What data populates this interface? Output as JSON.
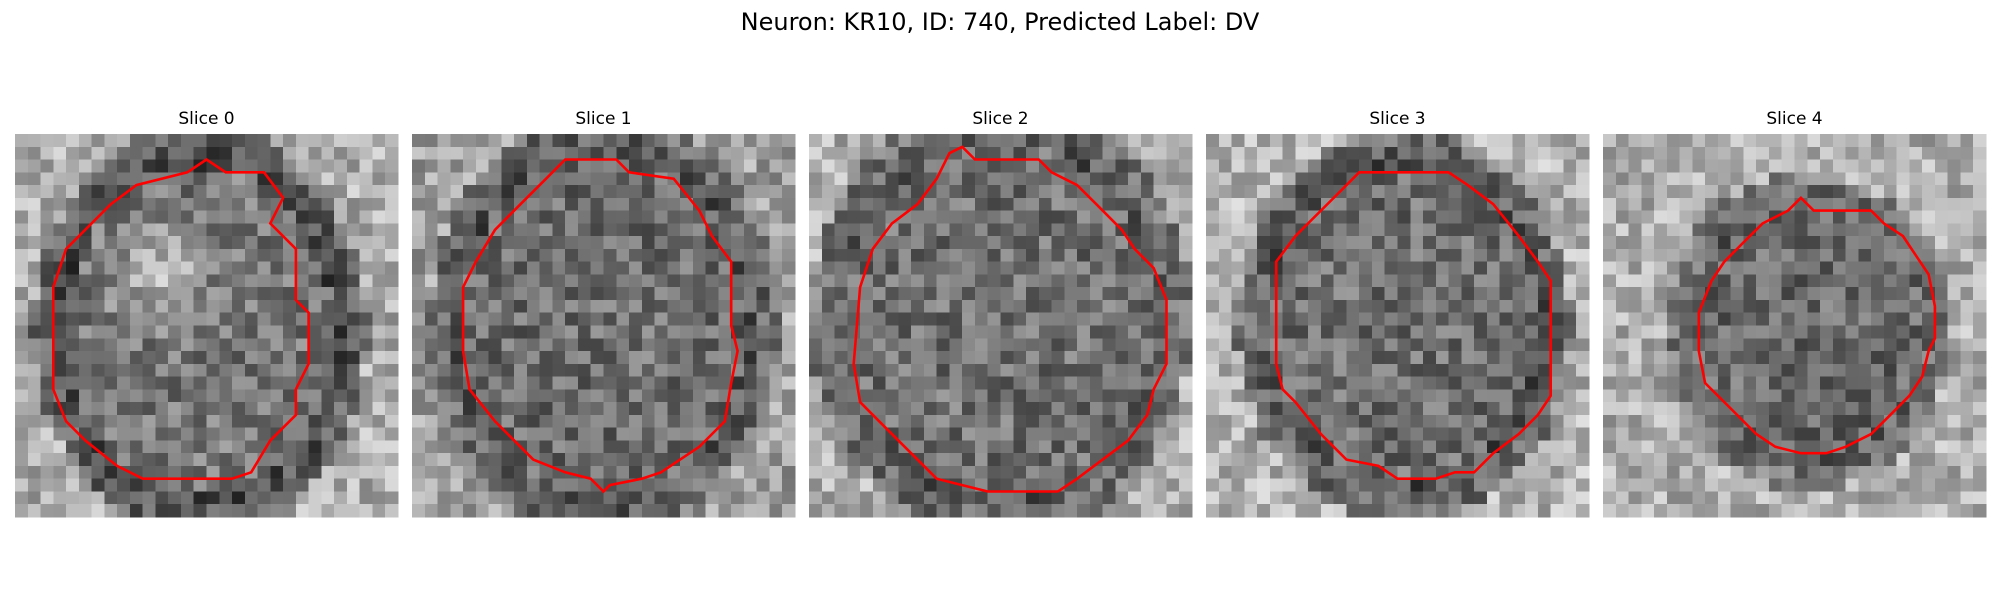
{
  "figure": {
    "title": "Neuron: KR10, ID: 740, Predicted Label: DV"
  },
  "slices": [
    {
      "title": "Slice 0",
      "outline": "irregular",
      "pattern": "bright-center-dark-ring"
    },
    {
      "title": "Slice 1",
      "outline": "octagon",
      "pattern": "dark-speckled"
    },
    {
      "title": "Slice 2",
      "outline": "octagon",
      "pattern": "dark-speckled"
    },
    {
      "title": "Slice 3",
      "outline": "octagon",
      "pattern": "dark-speckled"
    },
    {
      "title": "Slice 4",
      "outline": "octagon",
      "pattern": "dark-speckled-small"
    }
  ],
  "colors": {
    "contour": "#ff0000",
    "background": "#ffffff",
    "text": "#000000"
  }
}
